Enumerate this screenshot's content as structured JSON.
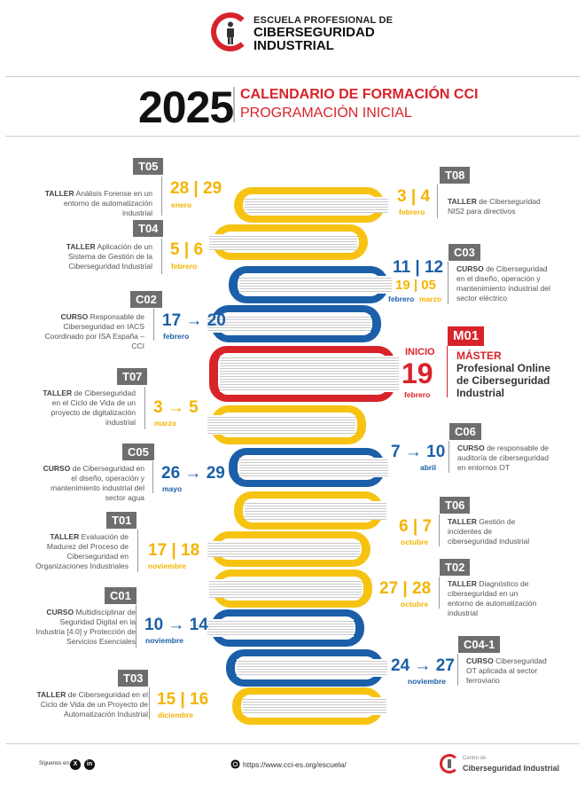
{
  "header": {
    "logo_line1": "ESCUELA PROFESIONAL DE",
    "logo_line2": "CIBERSEGURIDAD",
    "logo_line3": "INDUSTRIAL",
    "year": "2025",
    "title": "CALENDARIO DE FORMACIÓN CCI",
    "subtitle": "PROGRAMACIÓN INICIAL"
  },
  "courses": [
    {
      "code": "T05",
      "type": "TALLER",
      "desc": "Análisis Forense en un entorno de automatización industrial",
      "date": "28 | 29",
      "month": "enero"
    },
    {
      "code": "T08",
      "type": "TALLER",
      "desc": "de Ciberseguridad NIS2 para directivos",
      "date": "3 | 4",
      "month": "febrero"
    },
    {
      "code": "T04",
      "type": "TALLER",
      "desc": "Aplicación de un Sistema de Gestión de la Ciberseguridad Industrial",
      "date": "5 | 6",
      "month": "febrero"
    },
    {
      "code": "C03",
      "type": "CURSO",
      "desc": "de Ciberseguridad en el diseño, operación y mantenimiento industrial del sector eléctrico",
      "date": "11 | 12",
      "date2": "19 | 05",
      "month": "febrero",
      "month2": "marzo"
    },
    {
      "code": "C02",
      "type": "CURSO",
      "desc": "Responsable de Ciberseguridad en IACS Coordinado por ISA España – CCI",
      "date": "17 → 20",
      "month": "febrero"
    },
    {
      "code": "M01",
      "label": "INICIO",
      "type": "MÁSTER",
      "title1": "Profesional Online",
      "title2": "de Ciberseguridad",
      "title3": "Industrial",
      "date": "19",
      "month": "febrero"
    },
    {
      "code": "T07",
      "type": "TALLER",
      "desc": "de Ciberseguridad en el Ciclo de Vida de un proyecto de digitalización industrial",
      "date": "3 → 5",
      "month": "marzo"
    },
    {
      "code": "C06",
      "type": "CURSO",
      "desc": "de responsable de auditoría de ciberseguridad en entornos OT",
      "date": "7 → 10",
      "month": "abril"
    },
    {
      "code": "C05",
      "type": "CURSO",
      "desc": "de Ciberseguridad en el diseño, operación y mantenimiento industrial del sector agua",
      "date": "26 → 29",
      "month": "mayo"
    },
    {
      "code": "T06",
      "type": "TALLER",
      "desc": "Gestión de incidentes de ciberseguridad industrial",
      "date": "6 | 7",
      "month": "octubre"
    },
    {
      "code": "T01",
      "type": "TALLER",
      "desc": "Evaluación de Madurez del Proceso de Ciberseguridad en Organizaciones Industriales",
      "date": "17 | 18",
      "month": "noviembre"
    },
    {
      "code": "T02",
      "type": "TALLER",
      "desc": "Diagnóstico de ciberseguridad en un entorno de automatización industrial",
      "date": "27 | 28",
      "month": "octubre"
    },
    {
      "code": "C01",
      "type": "CURSO",
      "desc": "Multidisciplinar de Seguridad Digital en la Industria [4.0] y Protección de Servicios Esenciales",
      "date": "10 → 14",
      "month": "noviembre"
    },
    {
      "code": "C04-1",
      "type": "CURSO",
      "desc": "Ciberseguridad OT aplicada al sector ferroviario",
      "date": "24 → 27",
      "month": "noviembre"
    },
    {
      "code": "T03",
      "type": "TALLER",
      "desc": "de Ciberseguridad en el Ciclo de Vida de un Proyecto de Automatización Industrial",
      "date": "15 | 16",
      "month": "diciembre"
    }
  ],
  "footer": {
    "follow": "Síguenos en:",
    "social1": "X",
    "social2": "in",
    "url": "https://www.cci-es.org/escuela/",
    "brand_small": "Centro de",
    "brand": "Ciberseguridad Industrial"
  },
  "colors": {
    "yellow": "#f7c313",
    "blue": "#1b5fa8",
    "red": "#d8232a",
    "gray": "#6e6e6e"
  }
}
